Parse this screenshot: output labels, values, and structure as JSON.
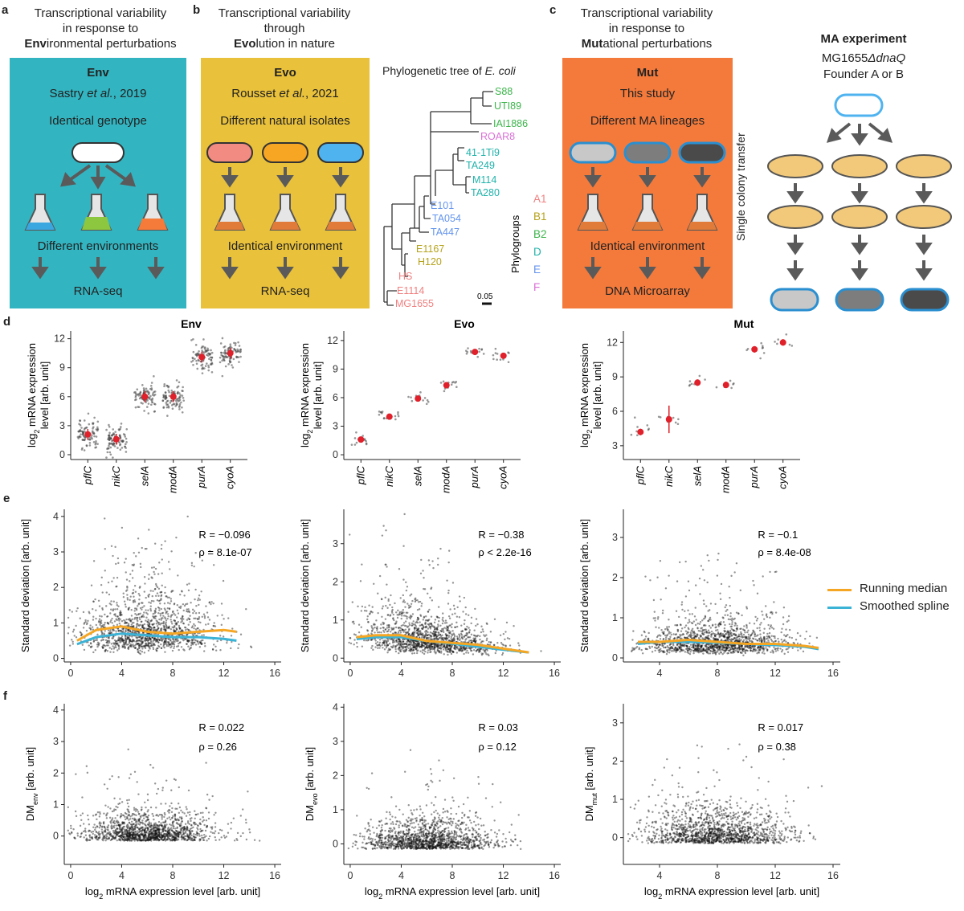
{
  "figure": {
    "panel_labels": [
      "a",
      "b",
      "c",
      "d",
      "e",
      "f"
    ],
    "panel_a": {
      "title_lines": [
        "Transcriptional variability",
        "in response to"
      ],
      "title_bold": "Env",
      "title_rest": "ironmental perturbations",
      "box_title": "Env",
      "ref_pre": "Sastry ",
      "ref_em": "et al.",
      "ref_post": ", 2019",
      "line1": "Identical genotype",
      "line2": "Different environments",
      "line3": "RNA-seq",
      "colors": {
        "box": "#33b5c1",
        "flask1": "#3aa7e0",
        "flask2": "#8dc63f",
        "flask3": "#f47b3a"
      }
    },
    "panel_b": {
      "title_lines": [
        "Transcriptional variability",
        "through"
      ],
      "title_bold": "Evo",
      "title_rest": "lution in nature",
      "box_title": "Evo",
      "ref_pre": "Rousset ",
      "ref_em": "et al.",
      "ref_post": ", 2021",
      "line1": "Different natural isolates",
      "line2": "Identical environment",
      "line3": "RNA-seq",
      "colors": {
        "box": "#e9c13b",
        "cell1": "#f28b82",
        "cell2": "#f6a623",
        "cell3": "#4fb3f0",
        "flask": "#e07b39"
      }
    },
    "tree": {
      "title_pre": "Phylogenetic tree of ",
      "title_em": "E. coli",
      "leaves": [
        {
          "name": "S88",
          "color": "#3cb44b"
        },
        {
          "name": "UTI89",
          "color": "#3cb44b"
        },
        {
          "name": "IAI1886",
          "color": "#3cb44b"
        },
        {
          "name": "ROAR8",
          "color": "#da70d6"
        },
        {
          "name": "41-1Ti9",
          "color": "#20b2aa"
        },
        {
          "name": "TA249",
          "color": "#20b2aa"
        },
        {
          "name": "M114",
          "color": "#20b2aa"
        },
        {
          "name": "TA280",
          "color": "#20b2aa"
        },
        {
          "name": "E101",
          "color": "#6495ed"
        },
        {
          "name": "TA054",
          "color": "#6495ed"
        },
        {
          "name": "TA447",
          "color": "#6495ed"
        },
        {
          "name": "E1167",
          "color": "#b5a21b"
        },
        {
          "name": "H120",
          "color": "#b5a21b"
        },
        {
          "name": "HS",
          "color": "#f08080"
        },
        {
          "name": "E1114",
          "color": "#f08080"
        },
        {
          "name": "MG1655",
          "color": "#f08080"
        }
      ],
      "scale": "0.05",
      "legend_title": "Phylogroups",
      "groups": [
        {
          "name": "A1",
          "color": "#f08080"
        },
        {
          "name": "B1",
          "color": "#b5a21b"
        },
        {
          "name": "B2",
          "color": "#3cb44b"
        },
        {
          "name": "D",
          "color": "#20b2aa"
        },
        {
          "name": "E",
          "color": "#6495ed"
        },
        {
          "name": "F",
          "color": "#da70d6"
        }
      ]
    },
    "panel_c": {
      "title_lines": [
        "Transcriptional variability",
        "in response to"
      ],
      "title_bold": "Mut",
      "title_rest": "ational perturbations",
      "box_title": "Mut",
      "ref": "This study",
      "line1": "Different MA lineages",
      "line2": "Identical environment",
      "line3": "DNA Microarray",
      "colors": {
        "box": "#f47a3c",
        "cell1": "#c8c8c8",
        "cell2": "#7d7d7d",
        "cell3": "#4a4a4a",
        "outline": "#2a8fd0"
      }
    },
    "ma": {
      "title": "MA experiment",
      "strain_pre": "MG1655",
      "strain_em": "ΔdnaQ",
      "founder": "Founder  A or B",
      "side": "Single colony transfer",
      "colors": {
        "plate": "#f2c97a",
        "plate_edge": "#555555"
      }
    },
    "panel_d": {
      "ylabel_pre": "log",
      "ylabel_sub": "2",
      "ylabel_post": " mRNA expression",
      "ylabel_line2": "level [arb. unit]",
      "genes": [
        "pflC",
        "nikC",
        "selA",
        "modA",
        "purA",
        "cyoA"
      ]
    },
    "panel_e": {
      "ylabel": "Standard deviation [arb. unit]",
      "legend": [
        {
          "name": "Running median",
          "color": "#f5a623"
        },
        {
          "name": "Smoothed spline",
          "color": "#3bb3d6"
        }
      ]
    },
    "panel_f": {
      "xlabel_pre": "log",
      "xlabel_sub": "2",
      "xlabel_post": " mRNA expression level [arb. unit]"
    }
  },
  "chart_data": [
    {
      "type": "scatter",
      "panel": "d",
      "title": "Env",
      "categories": [
        "pflC",
        "nikC",
        "selA",
        "modA",
        "purA",
        "cyoA"
      ],
      "medians": [
        2.1,
        1.6,
        6.0,
        6.0,
        10.1,
        10.5
      ],
      "yticks": [
        0,
        3,
        6,
        9,
        12
      ],
      "ylim": [
        -0.5,
        12.8
      ]
    },
    {
      "type": "scatter",
      "panel": "d",
      "title": "Evo",
      "categories": [
        "pflC",
        "nikC",
        "selA",
        "modA",
        "purA",
        "cyoA"
      ],
      "medians": [
        1.6,
        4.0,
        5.9,
        7.3,
        10.8,
        10.4
      ],
      "yticks": [
        0,
        3,
        6,
        9,
        12
      ],
      "ylim": [
        -0.5,
        13
      ]
    },
    {
      "type": "scatter",
      "panel": "d",
      "title": "Mut",
      "categories": [
        "pflC",
        "nikC",
        "selA",
        "modA",
        "purA",
        "cyoA"
      ],
      "medians": [
        4.2,
        5.3,
        8.5,
        8.3,
        11.4,
        12.0
      ],
      "yticks": [
        3,
        6,
        9,
        12
      ],
      "ylim": [
        1.8,
        13
      ]
    },
    {
      "type": "scatter",
      "panel": "e",
      "series_of": "Env",
      "R": "R = −0.096",
      "rho": "ρ = 8.1e-07",
      "xticks": [
        0,
        4,
        8,
        12,
        16
      ],
      "yticks": [
        0,
        1,
        2,
        3,
        4
      ],
      "xlim": [
        -0.5,
        16.5
      ],
      "ylim": [
        -0.1,
        4.2
      ],
      "median_curve": [
        [
          0.5,
          0.5
        ],
        [
          2,
          0.8
        ],
        [
          4,
          0.9
        ],
        [
          6,
          0.75
        ],
        [
          8,
          0.7
        ],
        [
          10,
          0.75
        ],
        [
          12,
          0.8
        ],
        [
          13,
          0.75
        ]
      ],
      "spline_curve": [
        [
          0.5,
          0.4
        ],
        [
          2,
          0.6
        ],
        [
          4,
          0.7
        ],
        [
          6,
          0.65
        ],
        [
          8,
          0.6
        ],
        [
          10,
          0.6
        ],
        [
          12,
          0.55
        ],
        [
          13,
          0.5
        ]
      ]
    },
    {
      "type": "scatter",
      "panel": "e",
      "series_of": "Evo",
      "R": "R = −0.38",
      "rho": "ρ < 2.2e-16",
      "xticks": [
        0,
        4,
        8,
        12,
        16
      ],
      "yticks": [
        0,
        1,
        2,
        3
      ],
      "xlim": [
        -0.5,
        16.5
      ],
      "ylim": [
        -0.1,
        3.9
      ],
      "median_curve": [
        [
          0.5,
          0.55
        ],
        [
          2,
          0.6
        ],
        [
          4,
          0.6
        ],
        [
          6,
          0.45
        ],
        [
          8,
          0.4
        ],
        [
          10,
          0.35
        ],
        [
          12,
          0.25
        ],
        [
          14,
          0.15
        ]
      ],
      "spline_curve": [
        [
          0.5,
          0.5
        ],
        [
          2,
          0.55
        ],
        [
          4,
          0.55
        ],
        [
          6,
          0.45
        ],
        [
          8,
          0.38
        ],
        [
          10,
          0.3
        ],
        [
          12,
          0.22
        ],
        [
          14,
          0.15
        ]
      ]
    },
    {
      "type": "scatter",
      "panel": "e",
      "series_of": "Mut",
      "R": "R = −0.1",
      "rho": "ρ = 8.4e-08",
      "xticks": [
        4,
        8,
        12,
        16
      ],
      "yticks": [
        0,
        1,
        2,
        3
      ],
      "xlim": [
        1.5,
        16.5
      ],
      "ylim": [
        -0.1,
        3.7
      ],
      "median_curve": [
        [
          2.5,
          0.4
        ],
        [
          4,
          0.4
        ],
        [
          6,
          0.45
        ],
        [
          8,
          0.4
        ],
        [
          10,
          0.35
        ],
        [
          12,
          0.35
        ],
        [
          14,
          0.3
        ],
        [
          15,
          0.25
        ]
      ],
      "spline_curve": [
        [
          2.5,
          0.35
        ],
        [
          4,
          0.4
        ],
        [
          6,
          0.4
        ],
        [
          8,
          0.38
        ],
        [
          10,
          0.35
        ],
        [
          12,
          0.32
        ],
        [
          14,
          0.28
        ],
        [
          15,
          0.22
        ]
      ]
    },
    {
      "type": "scatter",
      "panel": "f",
      "series_of": "Env",
      "R": "R = 0.022",
      "rho": "ρ = 0.26",
      "ylabel_sub": "env",
      "xticks": [
        0,
        4,
        8,
        12,
        16
      ],
      "yticks": [
        0,
        1,
        2,
        3,
        4
      ],
      "xlim": [
        -0.5,
        16.5
      ],
      "ylim": [
        -0.9,
        4.2
      ]
    },
    {
      "type": "scatter",
      "panel": "f",
      "series_of": "Evo",
      "R": "R = 0.03",
      "rho": "ρ = 0.12",
      "ylabel_sub": "evo",
      "xticks": [
        0,
        4,
        8,
        12,
        16
      ],
      "yticks": [
        0,
        1,
        2,
        3,
        4
      ],
      "xlim": [
        -0.5,
        16.5
      ],
      "ylim": [
        -0.6,
        4.1
      ]
    },
    {
      "type": "scatter",
      "panel": "f",
      "series_of": "Mut",
      "R": "R = 0.017",
      "rho": "ρ = 0.38",
      "ylabel_sub": "mut",
      "xticks": [
        4,
        8,
        12,
        16
      ],
      "yticks": [
        0,
        1,
        2,
        3
      ],
      "xlim": [
        1.5,
        16.5
      ],
      "ylim": [
        -0.7,
        3.5
      ]
    }
  ]
}
